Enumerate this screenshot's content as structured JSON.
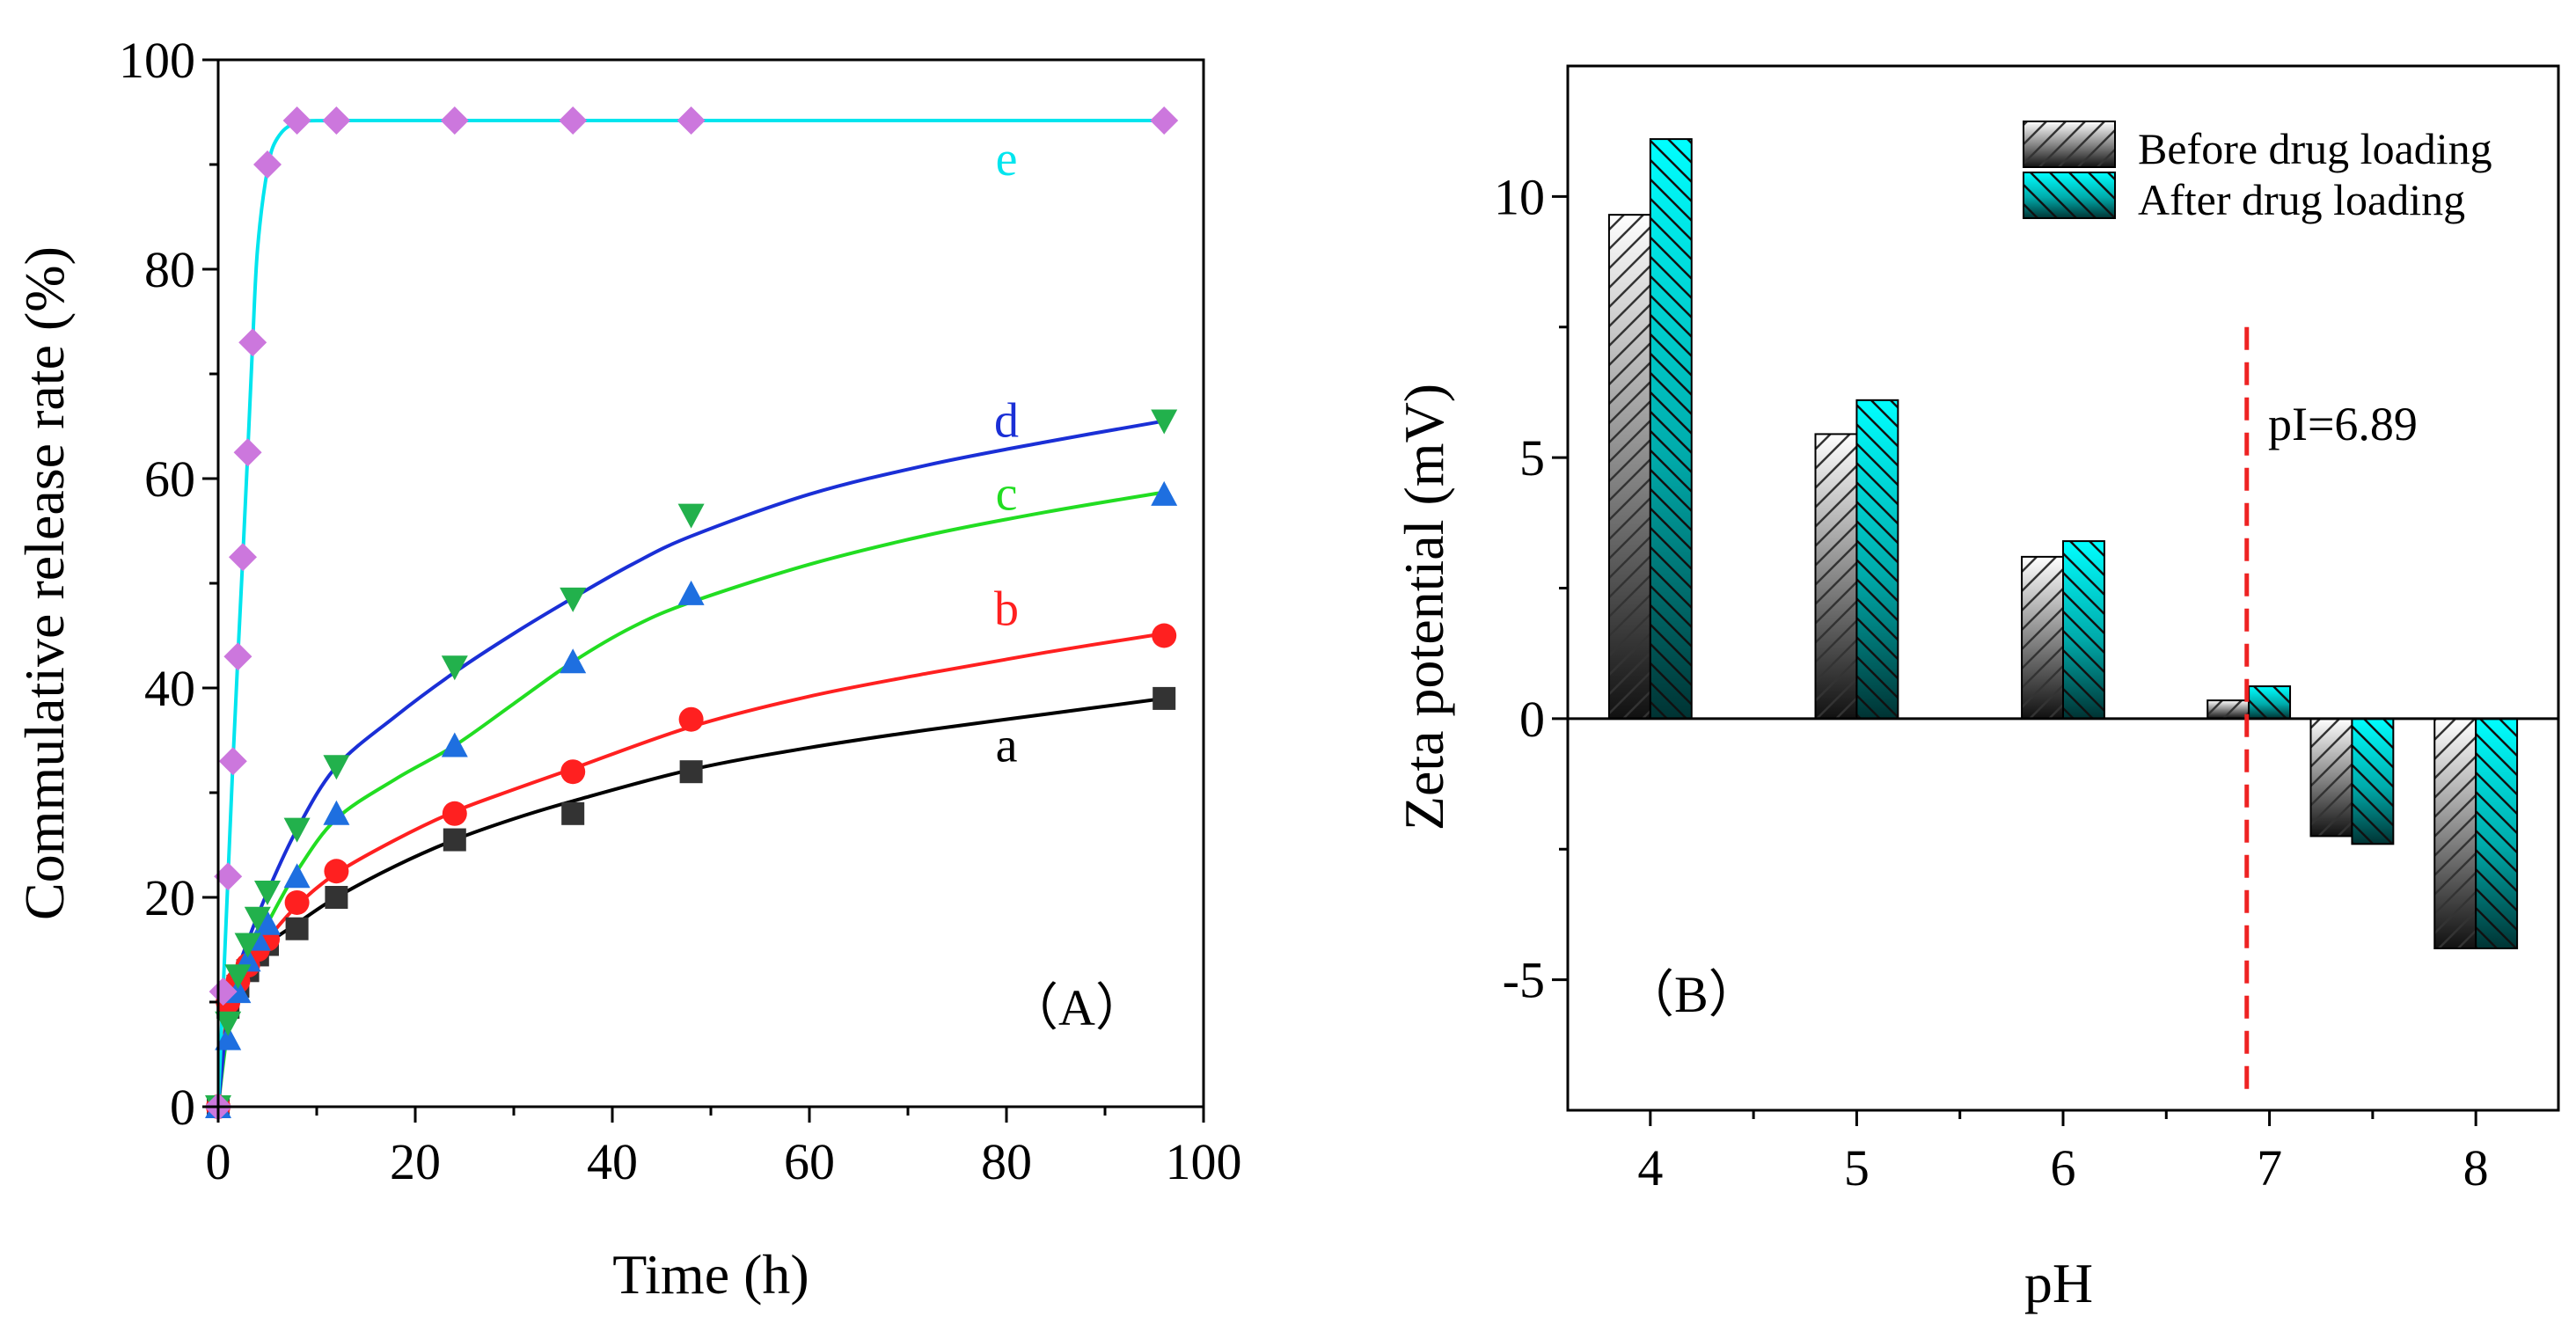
{
  "chart_data": [
    {
      "type": "line",
      "panel_label": "（A）",
      "xlabel": "Time (h)",
      "ylabel": "Commulative release rate (%)",
      "xlim": [
        0,
        100
      ],
      "ylim": [
        0,
        100
      ],
      "x_ticks": [
        "0",
        "20",
        "40",
        "60",
        "80",
        "100"
      ],
      "y_ticks": [
        "0",
        "20",
        "40",
        "60",
        "80",
        "100"
      ],
      "grid": false,
      "series": [
        {
          "name": "a",
          "color": "#333333",
          "marker": "square",
          "x": [
            0,
            1,
            2,
            3,
            4,
            5,
            8,
            12,
            24,
            36,
            48,
            96
          ],
          "y": [
            0,
            9.5,
            11.5,
            13,
            14.5,
            15.5,
            17,
            20,
            25.5,
            28,
            32,
            39
          ]
        },
        {
          "name": "b",
          "color": "#ff2020",
          "marker": "circle",
          "x": [
            0,
            1,
            2,
            3,
            4,
            5,
            8,
            12,
            24,
            36,
            48,
            96
          ],
          "y": [
            0,
            10,
            12,
            13.5,
            15,
            16,
            19.5,
            22.5,
            28,
            32,
            37,
            45
          ]
        },
        {
          "name": "c",
          "color": "#1e6fe0",
          "marker": "triangle-up",
          "x": [
            0,
            1,
            2,
            3,
            4,
            5,
            8,
            12,
            24,
            36,
            48,
            96
          ],
          "y": [
            0,
            6.5,
            11,
            14,
            16,
            17.5,
            22,
            28,
            34.5,
            42.5,
            49,
            58.5
          ]
        },
        {
          "name": "d",
          "color": "#22b14c",
          "marker": "triangle-down",
          "x": [
            0,
            1,
            2,
            3,
            4,
            5,
            8,
            12,
            24,
            36,
            48,
            96
          ],
          "y": [
            0,
            8,
            12.5,
            15.5,
            18,
            20.5,
            26.5,
            32.5,
            42,
            48.5,
            56.5,
            65.5
          ]
        },
        {
          "name": "e",
          "color": "#cc77dd",
          "marker": "diamond",
          "x": [
            0,
            0.5,
            1,
            1.5,
            2,
            2.5,
            3,
            3.5,
            5,
            8,
            12,
            24,
            36,
            48,
            96
          ],
          "y": [
            0,
            11,
            22,
            33,
            43,
            52.5,
            62.5,
            73,
            90,
            94.2,
            94.2,
            94.2,
            94.2,
            94.2,
            94.2
          ]
        }
      ],
      "fit_curves": [
        {
          "name": "a",
          "color": "#000000",
          "x": [
            0,
            1,
            2,
            3,
            5,
            8,
            12,
            18,
            24,
            30,
            36,
            48,
            60,
            72,
            84,
            96
          ],
          "y": [
            0,
            9.5,
            11.5,
            13,
            15.5,
            17.5,
            20,
            23,
            25.5,
            27.5,
            29.2,
            32.2,
            34.3,
            36,
            37.5,
            39
          ]
        },
        {
          "name": "b",
          "color": "#ff2020",
          "x": [
            0,
            1,
            2,
            3,
            5,
            8,
            12,
            18,
            24,
            30,
            36,
            48,
            60,
            72,
            84,
            96
          ],
          "y": [
            0,
            9.8,
            12,
            13.5,
            16,
            19.2,
            22.3,
            25.5,
            28.2,
            30.3,
            32.3,
            36.3,
            39.2,
            41.4,
            43.4,
            45.2
          ]
        },
        {
          "name": "c",
          "color": "#22dd22",
          "x": [
            0,
            1,
            2,
            3,
            5,
            8,
            12,
            18,
            24,
            30,
            36,
            42,
            48,
            60,
            72,
            84,
            96
          ],
          "y": [
            0,
            7.5,
            11,
            13.8,
            17.5,
            22.5,
            27.5,
            31.3,
            34.5,
            38.5,
            42.5,
            45.8,
            48.2,
            51.8,
            54.6,
            56.8,
            58.7
          ]
        },
        {
          "name": "d",
          "color": "#1a2fd6",
          "x": [
            0,
            1,
            2,
            3,
            5,
            8,
            12,
            18,
            24,
            30,
            36,
            42,
            48,
            60,
            72,
            84,
            96
          ],
          "y": [
            0,
            9,
            13,
            15.8,
            20.5,
            26.5,
            32.5,
            37.3,
            41.5,
            45.2,
            48.6,
            51.8,
            54.5,
            58.5,
            61.3,
            63.5,
            65.5
          ]
        },
        {
          "name": "e",
          "color": "#00e5ee",
          "x": [
            0,
            0.5,
            1,
            1.5,
            2,
            2.5,
            3,
            3.5,
            4,
            5,
            6,
            8,
            12,
            24,
            48,
            96
          ],
          "y": [
            0,
            11,
            22,
            33,
            43,
            52.5,
            62.5,
            73,
            82,
            89.5,
            92.5,
            94,
            94.2,
            94.2,
            94.2,
            94.2
          ]
        }
      ],
      "series_labels": [
        {
          "text": "a",
          "color": "#000000",
          "x": 80,
          "y": 33
        },
        {
          "text": "b",
          "color": "#ff2020",
          "x": 80,
          "y": 46
        },
        {
          "text": "c",
          "color": "#22dd22",
          "x": 80,
          "y": 57
        },
        {
          "text": "d",
          "color": "#1a2fd6",
          "x": 80,
          "y": 64
        },
        {
          "text": "e",
          "color": "#00e5ee",
          "x": 80,
          "y": 89
        }
      ]
    },
    {
      "type": "bar",
      "panel_label": "（B）",
      "xlabel": "pH",
      "ylabel": "Zeta potential (mV)",
      "xlim": [
        3.6,
        8.4
      ],
      "ylim": [
        -7.5,
        12.5
      ],
      "categories": [
        "4",
        "5",
        "6",
        "7",
        "8"
      ],
      "x_ticks": [
        "4",
        "5",
        "6",
        "7",
        "8"
      ],
      "y_ticks": [
        "-5",
        "0",
        "5",
        "10"
      ],
      "grid": false,
      "legend_position": "top-right",
      "series": [
        {
          "name": "Before drug loading",
          "color": "#333333",
          "pattern": "forward-hatch",
          "x": [
            4,
            5,
            6,
            6.9,
            7.4
          ],
          "values": [
            9.65,
            5.45,
            3.1,
            0.35,
            -2.25
          ]
        },
        {
          "name": "After drug loading",
          "color": "#00e5ee",
          "pattern": "back-hatch",
          "x": [
            4,
            5,
            6,
            6.9,
            7.4
          ],
          "values": [
            11.1,
            6.1,
            3.4,
            0.62,
            -2.4
          ]
        }
      ],
      "extra_bars": [
        {
          "series": "Before drug loading",
          "x": 8,
          "value": -4.4
        },
        {
          "series": "After drug loading",
          "x": 8,
          "value": -4.4
        }
      ],
      "reference_line": {
        "x": 6.89,
        "label": "pI=6.89",
        "color": "#ee2222",
        "style": "dashed"
      }
    }
  ]
}
